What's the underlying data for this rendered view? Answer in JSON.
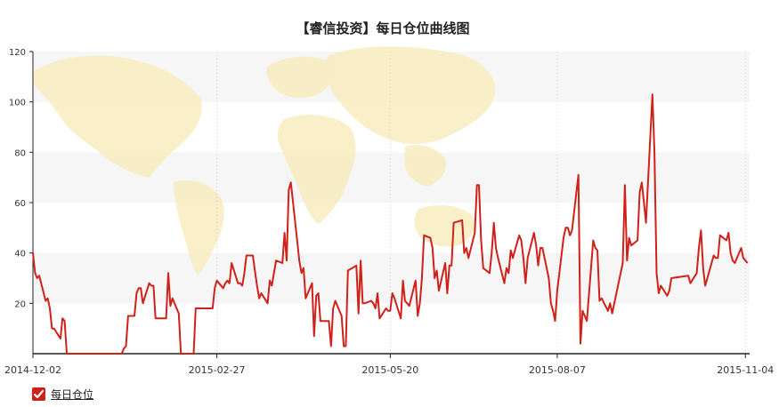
{
  "chart_data": {
    "type": "line",
    "title": "【睿信投资】每日仓位曲线图",
    "xlabel": "",
    "ylabel": "",
    "ylim": [
      0,
      120
    ],
    "y_ticks": [
      "20",
      "40",
      "60",
      "80",
      "100",
      "120"
    ],
    "x_ticks": [
      "2014-12-02",
      "2015-02-27",
      "2015-05-20",
      "2015-08-07",
      "2015-11-04"
    ],
    "x_range": [
      "2014-12-02",
      "2015-11-06"
    ],
    "grid": true,
    "background": "faint world map",
    "series": [
      {
        "name": "每日仓位",
        "color": "#d0211a",
        "points": [
          [
            "2014-12-02",
            40
          ],
          [
            "2014-12-03",
            32
          ],
          [
            "2014-12-04",
            30
          ],
          [
            "2014-12-05",
            31
          ],
          [
            "2014-12-08",
            21
          ],
          [
            "2014-12-09",
            22
          ],
          [
            "2014-12-10",
            18
          ],
          [
            "2014-12-11",
            10
          ],
          [
            "2014-12-12",
            10
          ],
          [
            "2014-12-15",
            6
          ],
          [
            "2014-12-16",
            14
          ],
          [
            "2014-12-17",
            13
          ],
          [
            "2014-12-18",
            0
          ],
          [
            "2014-12-19",
            0
          ],
          [
            "2014-12-22",
            0
          ],
          [
            "2014-12-23",
            0
          ],
          [
            "2014-12-24",
            0
          ],
          [
            "2014-12-25",
            0
          ],
          [
            "2014-12-26",
            0
          ],
          [
            "2014-12-29",
            0
          ],
          [
            "2014-12-30",
            0
          ],
          [
            "2014-12-31",
            0
          ],
          [
            "2015-01-05",
            0
          ],
          [
            "2015-01-06",
            0
          ],
          [
            "2015-01-07",
            0
          ],
          [
            "2015-01-08",
            0
          ],
          [
            "2015-01-09",
            0
          ],
          [
            "2015-01-12",
            0
          ],
          [
            "2015-01-13",
            0
          ],
          [
            "2015-01-14",
            2
          ],
          [
            "2015-01-15",
            3
          ],
          [
            "2015-01-16",
            15
          ],
          [
            "2015-01-19",
            15
          ],
          [
            "2015-01-20",
            24
          ],
          [
            "2015-01-21",
            26
          ],
          [
            "2015-01-22",
            26
          ],
          [
            "2015-01-23",
            20
          ],
          [
            "2015-01-26",
            28
          ],
          [
            "2015-01-27",
            27
          ],
          [
            "2015-01-28",
            27
          ],
          [
            "2015-01-29",
            14
          ],
          [
            "2015-01-30",
            14
          ],
          [
            "2015-02-02",
            14
          ],
          [
            "2015-02-03",
            14
          ],
          [
            "2015-02-04",
            32
          ],
          [
            "2015-02-05",
            19
          ],
          [
            "2015-02-06",
            22
          ],
          [
            "2015-02-09",
            16
          ],
          [
            "2015-02-10",
            0
          ],
          [
            "2015-02-11",
            0
          ],
          [
            "2015-02-12",
            0
          ],
          [
            "2015-02-13",
            0
          ],
          [
            "2015-02-16",
            0
          ],
          [
            "2015-02-17",
            18
          ],
          [
            "2015-02-25",
            18
          ],
          [
            "2015-02-26",
            26
          ],
          [
            "2015-02-27",
            29
          ],
          [
            "2015-03-02",
            26
          ],
          [
            "2015-03-03",
            28
          ],
          [
            "2015-03-04",
            29
          ],
          [
            "2015-03-05",
            28
          ],
          [
            "2015-03-06",
            36
          ],
          [
            "2015-03-09",
            28
          ],
          [
            "2015-03-10",
            28
          ],
          [
            "2015-03-11",
            27
          ],
          [
            "2015-03-12",
            32
          ],
          [
            "2015-03-13",
            39
          ],
          [
            "2015-03-16",
            39
          ],
          [
            "2015-03-17",
            33
          ],
          [
            "2015-03-18",
            27
          ],
          [
            "2015-03-19",
            22
          ],
          [
            "2015-03-20",
            24
          ],
          [
            "2015-03-23",
            20
          ],
          [
            "2015-03-24",
            29
          ],
          [
            "2015-03-25",
            27
          ],
          [
            "2015-03-26",
            32
          ],
          [
            "2015-03-27",
            37
          ],
          [
            "2015-03-30",
            36
          ],
          [
            "2015-03-31",
            48
          ],
          [
            "2015-04-01",
            37
          ],
          [
            "2015-04-02",
            65
          ],
          [
            "2015-04-03",
            68
          ],
          [
            "2015-04-07",
            37
          ],
          [
            "2015-04-08",
            32
          ],
          [
            "2015-04-09",
            34
          ],
          [
            "2015-04-10",
            22
          ],
          [
            "2015-04-13",
            28
          ],
          [
            "2015-04-14",
            7
          ],
          [
            "2015-04-15",
            23
          ],
          [
            "2015-04-16",
            24
          ],
          [
            "2015-04-17",
            13
          ],
          [
            "2015-04-20",
            13
          ],
          [
            "2015-04-21",
            13
          ],
          [
            "2015-04-22",
            3
          ],
          [
            "2015-04-23",
            18
          ],
          [
            "2015-04-24",
            21
          ],
          [
            "2015-04-27",
            15
          ],
          [
            "2015-04-28",
            3
          ],
          [
            "2015-04-29",
            3
          ],
          [
            "2015-04-30",
            33
          ],
          [
            "2015-05-04",
            35
          ],
          [
            "2015-05-05",
            16
          ],
          [
            "2015-05-06",
            37
          ],
          [
            "2015-05-07",
            20
          ],
          [
            "2015-05-08",
            20
          ],
          [
            "2015-05-11",
            21
          ],
          [
            "2015-05-12",
            20
          ],
          [
            "2015-05-13",
            18
          ],
          [
            "2015-05-14",
            24
          ],
          [
            "2015-05-15",
            14
          ],
          [
            "2015-05-18",
            18
          ],
          [
            "2015-05-19",
            17
          ],
          [
            "2015-05-20",
            17
          ],
          [
            "2015-05-21",
            24
          ],
          [
            "2015-05-22",
            22
          ],
          [
            "2015-05-25",
            14
          ],
          [
            "2015-05-26",
            29
          ],
          [
            "2015-05-27",
            21
          ],
          [
            "2015-05-28",
            20
          ],
          [
            "2015-05-29",
            19
          ],
          [
            "2015-06-01",
            29
          ],
          [
            "2015-06-02",
            15
          ],
          [
            "2015-06-03",
            20
          ],
          [
            "2015-06-04",
            30
          ],
          [
            "2015-06-05",
            47
          ],
          [
            "2015-06-08",
            46
          ],
          [
            "2015-06-09",
            42
          ],
          [
            "2015-06-10",
            30
          ],
          [
            "2015-06-11",
            33
          ],
          [
            "2015-06-12",
            25
          ],
          [
            "2015-06-15",
            36
          ],
          [
            "2015-06-16",
            24
          ],
          [
            "2015-06-17",
            35
          ],
          [
            "2015-06-18",
            35
          ],
          [
            "2015-06-19",
            52
          ],
          [
            "2015-06-23",
            53
          ],
          [
            "2015-06-24",
            40
          ],
          [
            "2015-06-25",
            42
          ],
          [
            "2015-06-26",
            38
          ],
          [
            "2015-06-29",
            48
          ],
          [
            "2015-06-30",
            67
          ],
          [
            "2015-07-01",
            67
          ],
          [
            "2015-07-02",
            45
          ],
          [
            "2015-07-03",
            34
          ],
          [
            "2015-07-06",
            32
          ],
          [
            "2015-07-07",
            40
          ],
          [
            "2015-07-08",
            52
          ],
          [
            "2015-07-09",
            42
          ],
          [
            "2015-07-10",
            38
          ],
          [
            "2015-07-13",
            28
          ],
          [
            "2015-07-14",
            34
          ],
          [
            "2015-07-15",
            32
          ],
          [
            "2015-07-16",
            41
          ],
          [
            "2015-07-17",
            38
          ],
          [
            "2015-07-20",
            47
          ],
          [
            "2015-07-21",
            45
          ],
          [
            "2015-07-22",
            38
          ],
          [
            "2015-07-23",
            28
          ],
          [
            "2015-07-24",
            38
          ],
          [
            "2015-07-27",
            48
          ],
          [
            "2015-07-28",
            43
          ],
          [
            "2015-07-29",
            35
          ],
          [
            "2015-07-30",
            42
          ],
          [
            "2015-07-31",
            42
          ],
          [
            "2015-08-03",
            30
          ],
          [
            "2015-08-04",
            20
          ],
          [
            "2015-08-05",
            17
          ],
          [
            "2015-08-06",
            13
          ],
          [
            "2015-08-07",
            25
          ],
          [
            "2015-08-10",
            46
          ],
          [
            "2015-08-11",
            50
          ],
          [
            "2015-08-12",
            50
          ],
          [
            "2015-08-13",
            47
          ],
          [
            "2015-08-14",
            49
          ],
          [
            "2015-08-17",
            71
          ],
          [
            "2015-08-18",
            4
          ],
          [
            "2015-08-19",
            17
          ],
          [
            "2015-08-20",
            15
          ],
          [
            "2015-08-21",
            13
          ],
          [
            "2015-08-24",
            45
          ],
          [
            "2015-08-25",
            42
          ],
          [
            "2015-08-26",
            41
          ],
          [
            "2015-08-27",
            21
          ],
          [
            "2015-08-28",
            22
          ],
          [
            "2015-08-31",
            17
          ],
          [
            "2015-09-01",
            20
          ],
          [
            "2015-09-02",
            16
          ],
          [
            "2015-09-07",
            36
          ],
          [
            "2015-09-08",
            67
          ],
          [
            "2015-09-09",
            37
          ],
          [
            "2015-09-10",
            46
          ],
          [
            "2015-09-11",
            43
          ],
          [
            "2015-09-14",
            45
          ],
          [
            "2015-09-15",
            64
          ],
          [
            "2015-09-16",
            68
          ],
          [
            "2015-09-17",
            60
          ],
          [
            "2015-09-18",
            52
          ],
          [
            "2015-09-21",
            103
          ],
          [
            "2015-09-22",
            80
          ],
          [
            "2015-09-23",
            32
          ],
          [
            "2015-09-24",
            24
          ],
          [
            "2015-09-25",
            27
          ],
          [
            "2015-09-28",
            23
          ],
          [
            "2015-09-29",
            25
          ],
          [
            "2015-09-30",
            30
          ],
          [
            "2015-10-08",
            31
          ],
          [
            "2015-10-09",
            28
          ],
          [
            "2015-10-12",
            32
          ],
          [
            "2015-10-13",
            42
          ],
          [
            "2015-10-14",
            49
          ],
          [
            "2015-10-15",
            34
          ],
          [
            "2015-10-16",
            27
          ],
          [
            "2015-10-19",
            36
          ],
          [
            "2015-10-20",
            39
          ],
          [
            "2015-10-21",
            38
          ],
          [
            "2015-10-22",
            38
          ],
          [
            "2015-10-23",
            47
          ],
          [
            "2015-10-26",
            45
          ],
          [
            "2015-10-27",
            48
          ],
          [
            "2015-10-28",
            40
          ],
          [
            "2015-10-29",
            37
          ],
          [
            "2015-10-30",
            36
          ],
          [
            "2015-11-02",
            42
          ],
          [
            "2015-11-03",
            38
          ],
          [
            "2015-11-04",
            37
          ],
          [
            "2015-11-05",
            36
          ]
        ]
      }
    ]
  },
  "legend": {
    "label": "每日仓位"
  }
}
